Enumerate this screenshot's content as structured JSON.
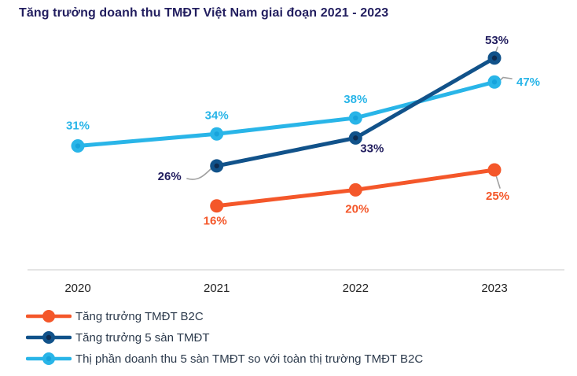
{
  "chart_data": {
    "type": "line",
    "title": "Tăng trưởng doanh thu TMĐT Việt Nam giai đoạn 2021 - 2023",
    "categories": [
      "2020",
      "2021",
      "2022",
      "2023"
    ],
    "series": [
      {
        "name": "Tăng trưởng TMĐT B2C",
        "color": "#F4572A",
        "marker_inner": "#F4572A",
        "label_color": "#F4572A",
        "start_index": 1,
        "values": [
          16,
          20,
          25
        ],
        "labels": [
          "16%",
          "20%",
          "25%"
        ]
      },
      {
        "name": "Tăng trưởng 5 sàn TMĐT",
        "color": "#11528A",
        "marker_inner": "#0F2C50",
        "label_color": "#221E5F",
        "start_index": 1,
        "values": [
          26,
          33,
          53
        ],
        "labels": [
          "26%",
          "33%",
          "53%"
        ]
      },
      {
        "name": "Thị phần doanh thu 5 sàn TMĐT so với toàn thị trường TMĐT B2C",
        "color": "#29B5E8",
        "marker_inner": "#17A3DC",
        "label_color": "#29B5E8",
        "start_index": 0,
        "values": [
          31,
          34,
          38,
          47
        ],
        "labels": [
          "31%",
          "34%",
          "38%",
          "47%"
        ]
      }
    ],
    "ylim": [
      0,
      67
    ],
    "grid": false,
    "legend_position": "bottom",
    "axis_color": "#DCDCDC",
    "tick_color": "#1F1F1F",
    "leader_color": "#A0A0A0"
  }
}
